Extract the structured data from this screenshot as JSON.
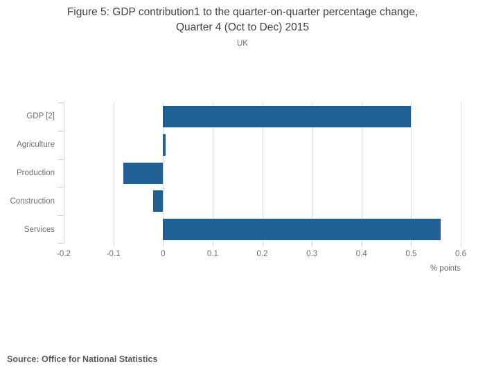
{
  "chart_data": {
    "type": "bar",
    "orientation": "horizontal",
    "title": "Figure 5: GDP contribution1 to the quarter-on-quarter percentage change, Quarter 4 (Oct to Dec) 2015",
    "title_lines": [
      "Figure 5: GDP contribution1 to the quarter-on-quarter percentage change,",
      "Quarter 4 (Oct to Dec) 2015"
    ],
    "subtitle": "UK",
    "categories": [
      "GDP [2]",
      "Agriculture",
      "Production",
      "Construction",
      "Services"
    ],
    "values": [
      0.5,
      0.005,
      -0.08,
      -0.02,
      0.56
    ],
    "xlabel": "% points",
    "xlim": [
      -0.2,
      0.6
    ],
    "xticks": [
      -0.2,
      -0.1,
      0,
      0.1,
      0.2,
      0.3,
      0.4,
      0.5,
      0.6
    ],
    "xtick_labels": [
      "-0.2",
      "-0.1",
      "0",
      "0.1",
      "0.2",
      "0.3",
      "0.4",
      "0.5",
      "0.6"
    ],
    "grid": true,
    "legend": "none"
  },
  "footer": {
    "source": "Source: Office for National Statistics"
  },
  "colors": {
    "bar": "#206095",
    "gridline": "#d9d9d9",
    "axis_line": "#c9d5e3",
    "title_text": "#404145",
    "muted_text": "#6e6f72",
    "source_text": "#58595b"
  }
}
